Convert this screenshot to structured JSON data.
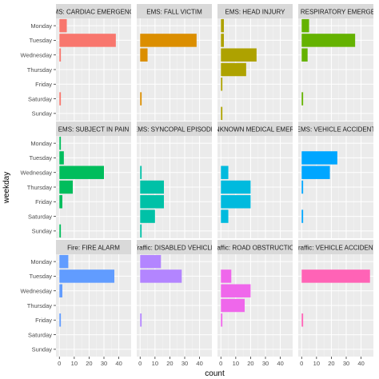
{
  "chart_data": {
    "type": "bar",
    "orientation": "horizontal",
    "facet_layout": {
      "rows": 3,
      "cols": 4
    },
    "xlabel": "count",
    "ylabel": "weekday",
    "xlim": [
      0,
      46
    ],
    "x_ticks": [
      0,
      10,
      20,
      30,
      40
    ],
    "weekdays": [
      "Monday",
      "Tuesday",
      "Wednesday",
      "Thursday",
      "Friday",
      "Saturday",
      "Sunday"
    ],
    "grid": true,
    "legend": "none",
    "panel_background": "#ebebeb",
    "strip_background": "#d9d9d9",
    "facets": [
      {
        "label": "EMS: CARDIAC EMERGENCY",
        "color": "#F8766D",
        "values": [
          5,
          38,
          1,
          0,
          0,
          1,
          0
        ]
      },
      {
        "label": "EMS: FALL VICTIM",
        "color": "#DB8E00",
        "values": [
          0,
          38,
          5,
          0,
          0,
          1,
          0
        ]
      },
      {
        "label": "EMS: HEAD INJURY",
        "color": "#AEA200",
        "values": [
          2,
          2,
          24,
          17,
          1,
          0,
          1
        ]
      },
      {
        "label": "EMS: RESPIRATORY EMERGENCY",
        "color": "#64B200",
        "values": [
          5,
          36,
          4,
          0,
          0,
          1,
          0
        ]
      },
      {
        "label": "EMS: SUBJECT IN PAIN",
        "color": "#00BD5C",
        "values": [
          1,
          3,
          30,
          9,
          2,
          0,
          1
        ]
      },
      {
        "label": "EMS: SYNCOPAL EPISODE",
        "color": "#00C1A7",
        "values": [
          0,
          0,
          1,
          16,
          16,
          10,
          1
        ]
      },
      {
        "label": "EMS: UNKNOWN MEDICAL EMERGENCY",
        "color": "#00BADE",
        "values": [
          0,
          0,
          5,
          20,
          20,
          5,
          0
        ]
      },
      {
        "label": "EMS: VEHICLE ACCIDENT",
        "color": "#00A6FF",
        "values": [
          0,
          24,
          19,
          1,
          0,
          1,
          0
        ]
      },
      {
        "label": "Fire: FIRE ALARM",
        "color": "#619CFF",
        "values": [
          6,
          37,
          2,
          0,
          1,
          0,
          0
        ]
      },
      {
        "label": "Traffic: DISABLED VEHICLE",
        "color": "#B385FF",
        "values": [
          14,
          28,
          0,
          0,
          1,
          0,
          0
        ]
      },
      {
        "label": "Traffic: ROAD OBSTRUCTION",
        "color": "#EF67EB",
        "values": [
          0,
          7,
          20,
          16,
          1,
          0,
          0
        ]
      },
      {
        "label": "Traffic: VEHICLE ACCIDENT",
        "color": "#FF63B6",
        "values": [
          0,
          46,
          0,
          0,
          1,
          0,
          0
        ]
      }
    ]
  }
}
